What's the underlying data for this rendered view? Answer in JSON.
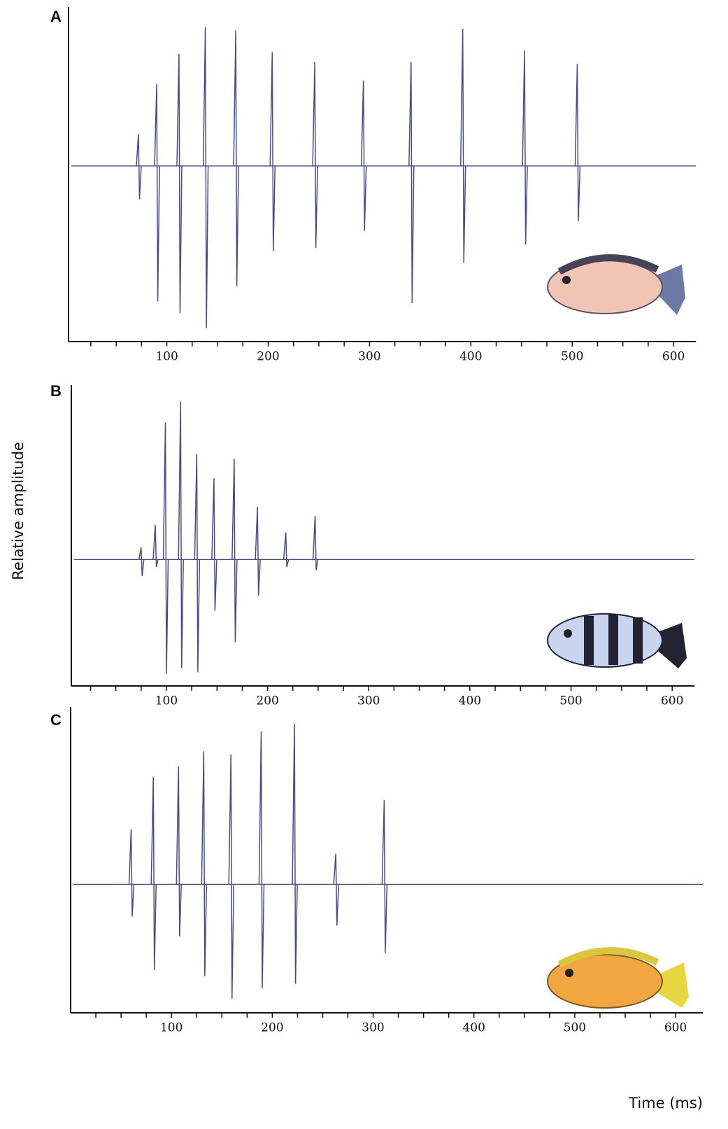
{
  "chart_data": [
    {
      "type": "waveform",
      "title": "A",
      "color": "#4a4a8a",
      "xlim": [
        3,
        622
      ],
      "xticks": [
        100,
        200,
        300,
        400,
        500,
        600
      ],
      "xminorticks": [
        25,
        50,
        75,
        125,
        150,
        175,
        225,
        250,
        275,
        325,
        350,
        375,
        425,
        450,
        475,
        525,
        550,
        575
      ],
      "ylim": [
        -1,
        1
      ],
      "baseline": 0.05,
      "times": [
        72,
        90,
        112,
        138,
        168,
        204,
        246,
        294,
        341,
        392,
        453,
        505
      ],
      "peaks": [
        0.24,
        0.54,
        0.72,
        0.88,
        0.86,
        0.73,
        0.67,
        0.56,
        0.67,
        0.87,
        0.74,
        0.66
      ],
      "troughs": [
        -0.15,
        -0.76,
        -0.83,
        -0.92,
        -0.67,
        -0.46,
        -0.44,
        -0.34,
        -0.77,
        -0.53,
        -0.42,
        -0.28
      ]
    },
    {
      "type": "waveform",
      "title": "B",
      "color": "#4a4a8a",
      "y_label": "Relative amplitude",
      "xlim": [
        6,
        622
      ],
      "xticks": [
        100,
        200,
        300,
        400,
        500,
        600
      ],
      "xminorticks": [
        25,
        50,
        75,
        125,
        150,
        175,
        225,
        250,
        275,
        325,
        350,
        375,
        425,
        450,
        475,
        525,
        550,
        575
      ],
      "ylim": [
        -1,
        1
      ],
      "baseline": -0.16,
      "times": [
        75,
        89,
        99,
        114,
        130,
        147,
        167,
        190,
        218,
        247
      ],
      "peaks": [
        -0.08,
        0.07,
        0.75,
        0.89,
        0.54,
        0.38,
        0.51,
        0.19,
        0.02,
        0.13
      ],
      "troughs": [
        -0.27,
        -0.21,
        -0.92,
        -0.88,
        -0.91,
        -0.5,
        -0.71,
        -0.4,
        -0.21,
        -0.23
      ]
    },
    {
      "type": "waveform",
      "title": "C",
      "color": "#4a4a8a",
      "x_label": "Time (ms)",
      "xlim": [
        0,
        627
      ],
      "xticks": [
        100,
        200,
        300,
        400,
        500,
        600
      ],
      "xminorticks": [
        25,
        50,
        75,
        125,
        150,
        175,
        225,
        250,
        275,
        325,
        350,
        375,
        425,
        450,
        475,
        525,
        550,
        575
      ],
      "ylim": [
        -1,
        1
      ],
      "baseline": -0.16,
      "times": [
        60,
        82,
        107,
        132,
        159,
        189,
        222,
        263,
        311
      ],
      "peaks": [
        0.2,
        0.54,
        0.61,
        0.71,
        0.69,
        0.84,
        0.89,
        0.04,
        0.39
      ],
      "troughs": [
        -0.37,
        -0.72,
        -0.5,
        -0.76,
        -0.91,
        -0.84,
        -0.81,
        -0.43,
        -0.61
      ]
    }
  ]
}
